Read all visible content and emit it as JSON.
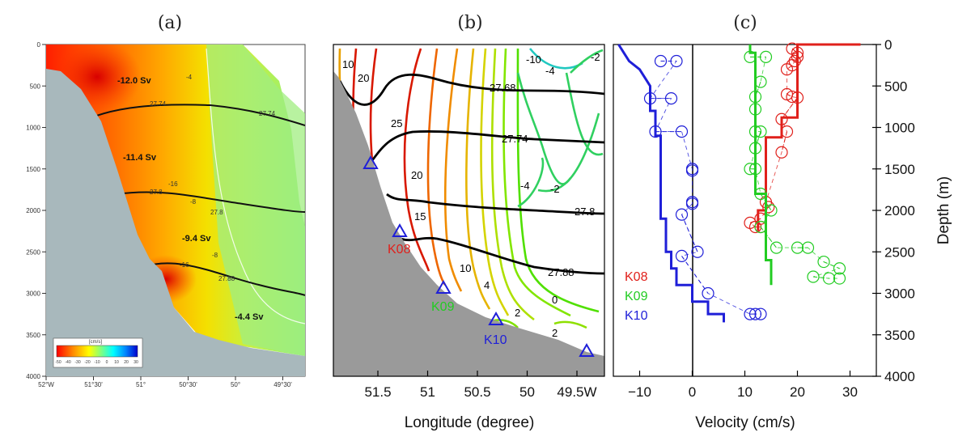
{
  "panels": {
    "a": {
      "label": "(a)"
    },
    "b": {
      "label": "(b)"
    },
    "c": {
      "label": "(c)"
    }
  },
  "colors": {
    "K08": "#e0201b",
    "K09": "#22cc22",
    "K10": "#1f1fd8",
    "bathymetry": "#9a9a9a"
  },
  "panel_a": {
    "y_ticks": [
      "0",
      "500",
      "1000",
      "1500",
      "2000",
      "2500",
      "3000",
      "3500",
      "4000"
    ],
    "x_ticks": [
      "52°W",
      "51°30'",
      "51°",
      "50°30'",
      "50°",
      "49°30'"
    ],
    "transports": [
      "-12.0 Sv",
      "-11.4 Sv",
      "-9.4 Sv",
      "-4.4 Sv"
    ],
    "isopycnals": [
      "27.74",
      "27.74",
      "27.8",
      "27.8",
      "27.88"
    ],
    "contour_labels": [
      "-4",
      "-16",
      "-8",
      "-8",
      "-16"
    ],
    "colorbar": {
      "title": "[cm/s]",
      "ticks": [
        "-50",
        "-40",
        "-30",
        "-20",
        "-10",
        "0",
        "10",
        "20",
        "30"
      ]
    }
  },
  "panel_b": {
    "x_ticks": [
      "51.5",
      "51",
      "50.5",
      "50",
      "49.5W"
    ],
    "xlabel": "Longitude (degree)",
    "speed_labels": [
      "10",
      "20",
      "25",
      "20",
      "15",
      "10",
      "4",
      "2",
      "2",
      "0",
      "-10",
      "-4",
      "-2",
      "-4",
      "-2"
    ],
    "isopycnal_labels": [
      "27.68",
      "27.74",
      "27.8",
      "27.88"
    ],
    "stations": [
      "K08",
      "K09",
      "K10"
    ]
  },
  "chart_data": {
    "type": "line",
    "xlabel": "Velocity (cm/s)",
    "ylabel": "Depth (m)",
    "xlim": [
      -15,
      35
    ],
    "ylim": [
      4000,
      0
    ],
    "x_ticks": [
      "−10",
      "0",
      "10",
      "20",
      "30"
    ],
    "y_ticks": [
      "0",
      "500",
      "1000",
      "1500",
      "2000",
      "2500",
      "3000",
      "3500",
      "4000"
    ],
    "legend": [
      "K08",
      "K09",
      "K10"
    ],
    "series": [
      {
        "name": "K08",
        "profile": [
          [
            32,
            0
          ],
          [
            20,
            0
          ],
          [
            20,
            880
          ],
          [
            17,
            880
          ],
          [
            17,
            1120
          ],
          [
            14,
            1120
          ],
          [
            14,
            2000
          ],
          [
            12.5,
            2000
          ],
          [
            12.5,
            2250
          ]
        ],
        "points": [
          [
            19,
            50
          ],
          [
            20,
            100
          ],
          [
            20,
            150
          ],
          [
            19.5,
            200
          ],
          [
            19,
            250
          ],
          [
            18,
            300
          ],
          [
            18,
            600
          ],
          [
            19,
            630
          ],
          [
            20,
            640
          ],
          [
            17,
            900
          ],
          [
            18,
            1050
          ],
          [
            17,
            1300
          ],
          [
            14,
            1900
          ],
          [
            14.5,
            1960
          ],
          [
            13,
            2100
          ],
          [
            11,
            2150
          ],
          [
            12,
            2200
          ],
          [
            13,
            2200
          ]
        ]
      },
      {
        "name": "K09",
        "profile": [
          [
            11,
            0
          ],
          [
            11,
            100
          ],
          [
            12,
            100
          ],
          [
            12,
            1800
          ],
          [
            14,
            1800
          ],
          [
            14,
            2600
          ],
          [
            15,
            2600
          ],
          [
            15,
            2900
          ]
        ],
        "points": [
          [
            11,
            150
          ],
          [
            14,
            150
          ],
          [
            13,
            450
          ],
          [
            12,
            630
          ],
          [
            12,
            780
          ],
          [
            12,
            1050
          ],
          [
            13,
            1050
          ],
          [
            12,
            1250
          ],
          [
            11,
            1500
          ],
          [
            12,
            1500
          ],
          [
            13,
            1800
          ],
          [
            15,
            2000
          ],
          [
            13,
            2200
          ],
          [
            16,
            2450
          ],
          [
            20,
            2450
          ],
          [
            22,
            2450
          ],
          [
            25,
            2620
          ],
          [
            28,
            2700
          ],
          [
            23,
            2800
          ],
          [
            26,
            2820
          ],
          [
            28,
            2820
          ]
        ]
      },
      {
        "name": "K10",
        "profile": [
          [
            -14,
            0
          ],
          [
            -13,
            100
          ],
          [
            -12,
            200
          ],
          [
            -10,
            300
          ],
          [
            -8,
            500
          ],
          [
            -8,
            800
          ],
          [
            -7,
            800
          ],
          [
            -7,
            1100
          ],
          [
            -6,
            1100
          ],
          [
            -6,
            2100
          ],
          [
            -5,
            2100
          ],
          [
            -5,
            2500
          ],
          [
            -4,
            2500
          ],
          [
            -4,
            2700
          ],
          [
            -3,
            2700
          ],
          [
            -3,
            2900
          ],
          [
            0,
            2900
          ],
          [
            0,
            3100
          ],
          [
            3,
            3100
          ],
          [
            3,
            3250
          ],
          [
            6,
            3250
          ],
          [
            6,
            3350
          ]
        ],
        "points": [
          [
            -6,
            200
          ],
          [
            -3,
            200
          ],
          [
            -8,
            650
          ],
          [
            -4,
            650
          ],
          [
            -7,
            1050
          ],
          [
            -2,
            1050
          ],
          [
            0,
            1500
          ],
          [
            0,
            1520
          ],
          [
            0,
            1900
          ],
          [
            0,
            1920
          ],
          [
            -2,
            2050
          ],
          [
            1,
            2500
          ],
          [
            -2,
            2550
          ],
          [
            3,
            3000
          ],
          [
            11,
            3250
          ],
          [
            12,
            3250
          ],
          [
            13,
            3250
          ]
        ]
      }
    ]
  }
}
